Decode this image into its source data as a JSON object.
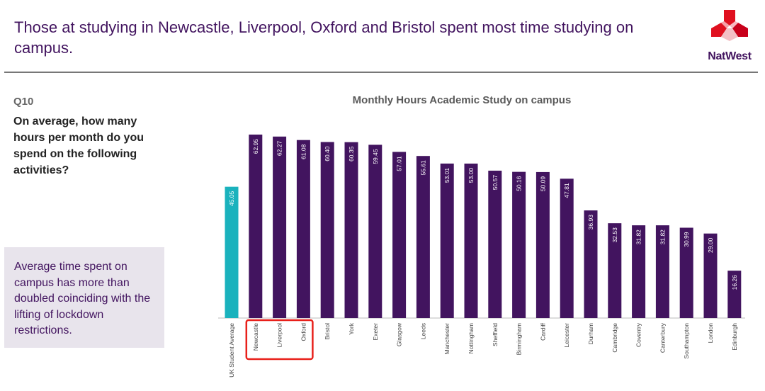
{
  "header": {
    "title": "Those at studying in Newcastle, Liverpool, Oxford and Bristol spent most time studying on campus.",
    "logo_text": "NatWest"
  },
  "question": {
    "number": "Q10",
    "text": "On average, how many hours per month do you spend on the following activities?"
  },
  "note": "Average time spent on campus has more than doubled coinciding with the lifting of lockdown restrictions.",
  "colors": {
    "brand": "#42145f",
    "average": "#1ab2bd",
    "highlight": "#e8201a",
    "logo_red": "#e0101f"
  },
  "chart_data": {
    "type": "bar",
    "title": "Monthly Hours Academic Study on campus",
    "categories": [
      "UK Student Average",
      "Newcastle",
      "Liverpool",
      "Oxford",
      "Bristol",
      "York",
      "Exeter",
      "Glasgow",
      "Leeds",
      "Manchester",
      "Nottingham",
      "Sheffield",
      "Birmingham",
      "Cardiff",
      "Leicester",
      "Durham",
      "Cambridge",
      "Coventry",
      "Canterbury",
      "Southampton",
      "London",
      "Edinburgh"
    ],
    "values": [
      45.05,
      62.95,
      62.27,
      61.08,
      60.4,
      60.35,
      59.45,
      57.01,
      55.61,
      53.01,
      53.0,
      50.57,
      50.16,
      50.09,
      47.81,
      36.93,
      32.53,
      31.82,
      31.82,
      30.99,
      29.0,
      16.26
    ],
    "highlighted": [
      "Newcastle",
      "Liverpool",
      "Oxford"
    ],
    "ylim": [
      0,
      63
    ],
    "grid": false,
    "legend": "none",
    "data_labels": "inside-vertical"
  }
}
